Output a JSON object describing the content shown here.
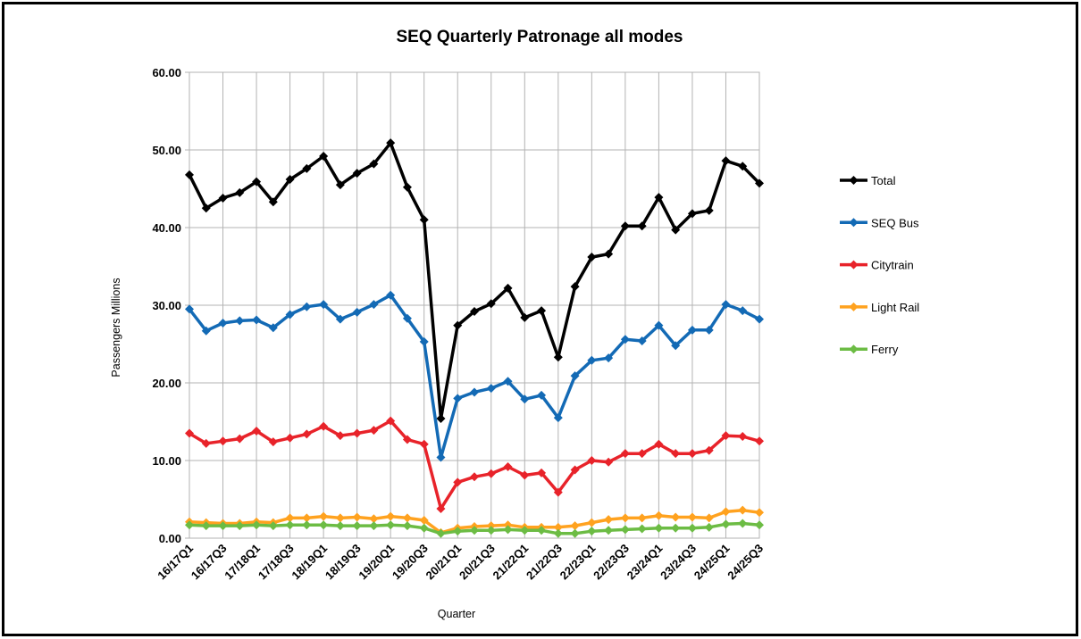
{
  "chart_data": {
    "type": "line",
    "title": "SEQ Quarterly Patronage all modes",
    "xlabel": "Quarter",
    "ylabel": "Passengers Millions",
    "ylim": [
      0,
      60
    ],
    "yticks": [
      0,
      10,
      20,
      30,
      40,
      50,
      60
    ],
    "ytick_labels": [
      "0.00",
      "10.00",
      "20.00",
      "30.00",
      "40.00",
      "50.00",
      "60.00"
    ],
    "grid": true,
    "legend": "right",
    "categories": [
      "16/17Q1",
      "",
      "16/17Q3",
      "",
      "17/18Q1",
      "",
      "17/18Q3",
      "",
      "18/19Q1",
      "",
      "18/19Q3",
      "",
      "19/20Q1",
      "",
      "19/20Q3",
      "",
      "20/21Q1",
      "",
      "20/21Q3",
      "",
      "21/22Q1",
      "",
      "21/22Q3",
      "",
      "22/23Q1",
      "",
      "22/23Q3",
      "",
      "23/24Q1",
      "",
      "23/24Q3",
      "",
      "24/25Q1",
      "",
      "24/25Q3"
    ],
    "series": [
      {
        "name": "Total",
        "color": "#000000",
        "values": [
          46.8,
          42.5,
          43.8,
          44.5,
          45.9,
          43.3,
          46.2,
          47.6,
          49.2,
          45.5,
          47.0,
          48.2,
          50.9,
          45.2,
          41.0,
          15.4,
          27.4,
          29.2,
          30.2,
          32.2,
          28.4,
          29.3,
          23.3,
          32.4,
          36.2,
          36.6,
          40.2,
          40.2,
          43.9,
          39.7,
          41.8,
          42.2,
          48.6,
          47.9,
          45.7
        ]
      },
      {
        "name": "SEQ Bus",
        "color": "#136ab5",
        "values": [
          29.5,
          26.7,
          27.7,
          28.0,
          28.1,
          27.1,
          28.8,
          29.8,
          30.1,
          28.2,
          29.1,
          30.1,
          31.3,
          28.3,
          25.3,
          10.4,
          18.0,
          18.8,
          19.3,
          20.2,
          17.9,
          18.4,
          15.5,
          20.9,
          22.9,
          23.2,
          25.6,
          25.4,
          27.4,
          24.8,
          26.8,
          26.8,
          30.1,
          29.3,
          28.2
        ]
      },
      {
        "name": "Citytrain",
        "color": "#e8232a",
        "values": [
          13.5,
          12.2,
          12.5,
          12.8,
          13.8,
          12.4,
          12.9,
          13.4,
          14.4,
          13.2,
          13.5,
          13.9,
          15.1,
          12.7,
          12.1,
          3.8,
          7.2,
          7.9,
          8.3,
          9.2,
          8.1,
          8.4,
          5.9,
          8.8,
          10.0,
          9.8,
          10.9,
          10.9,
          12.1,
          10.9,
          10.9,
          11.3,
          13.2,
          13.1,
          12.5
        ]
      },
      {
        "name": "Light Rail",
        "color": "#ffa21f",
        "values": [
          2.1,
          2.0,
          1.9,
          1.9,
          2.1,
          2.0,
          2.6,
          2.6,
          2.8,
          2.6,
          2.7,
          2.5,
          2.8,
          2.6,
          2.3,
          0.7,
          1.3,
          1.5,
          1.6,
          1.7,
          1.4,
          1.4,
          1.4,
          1.6,
          2.0,
          2.4,
          2.6,
          2.6,
          2.9,
          2.7,
          2.7,
          2.6,
          3.4,
          3.6,
          3.3
        ]
      },
      {
        "name": "Ferry",
        "color": "#6cbc44",
        "values": [
          1.7,
          1.6,
          1.6,
          1.6,
          1.7,
          1.6,
          1.7,
          1.7,
          1.7,
          1.6,
          1.6,
          1.6,
          1.7,
          1.6,
          1.3,
          0.6,
          0.9,
          1.0,
          1.0,
          1.1,
          1.0,
          1.0,
          0.6,
          0.6,
          0.9,
          1.0,
          1.1,
          1.2,
          1.3,
          1.3,
          1.3,
          1.4,
          1.8,
          1.9,
          1.7
        ]
      }
    ]
  }
}
